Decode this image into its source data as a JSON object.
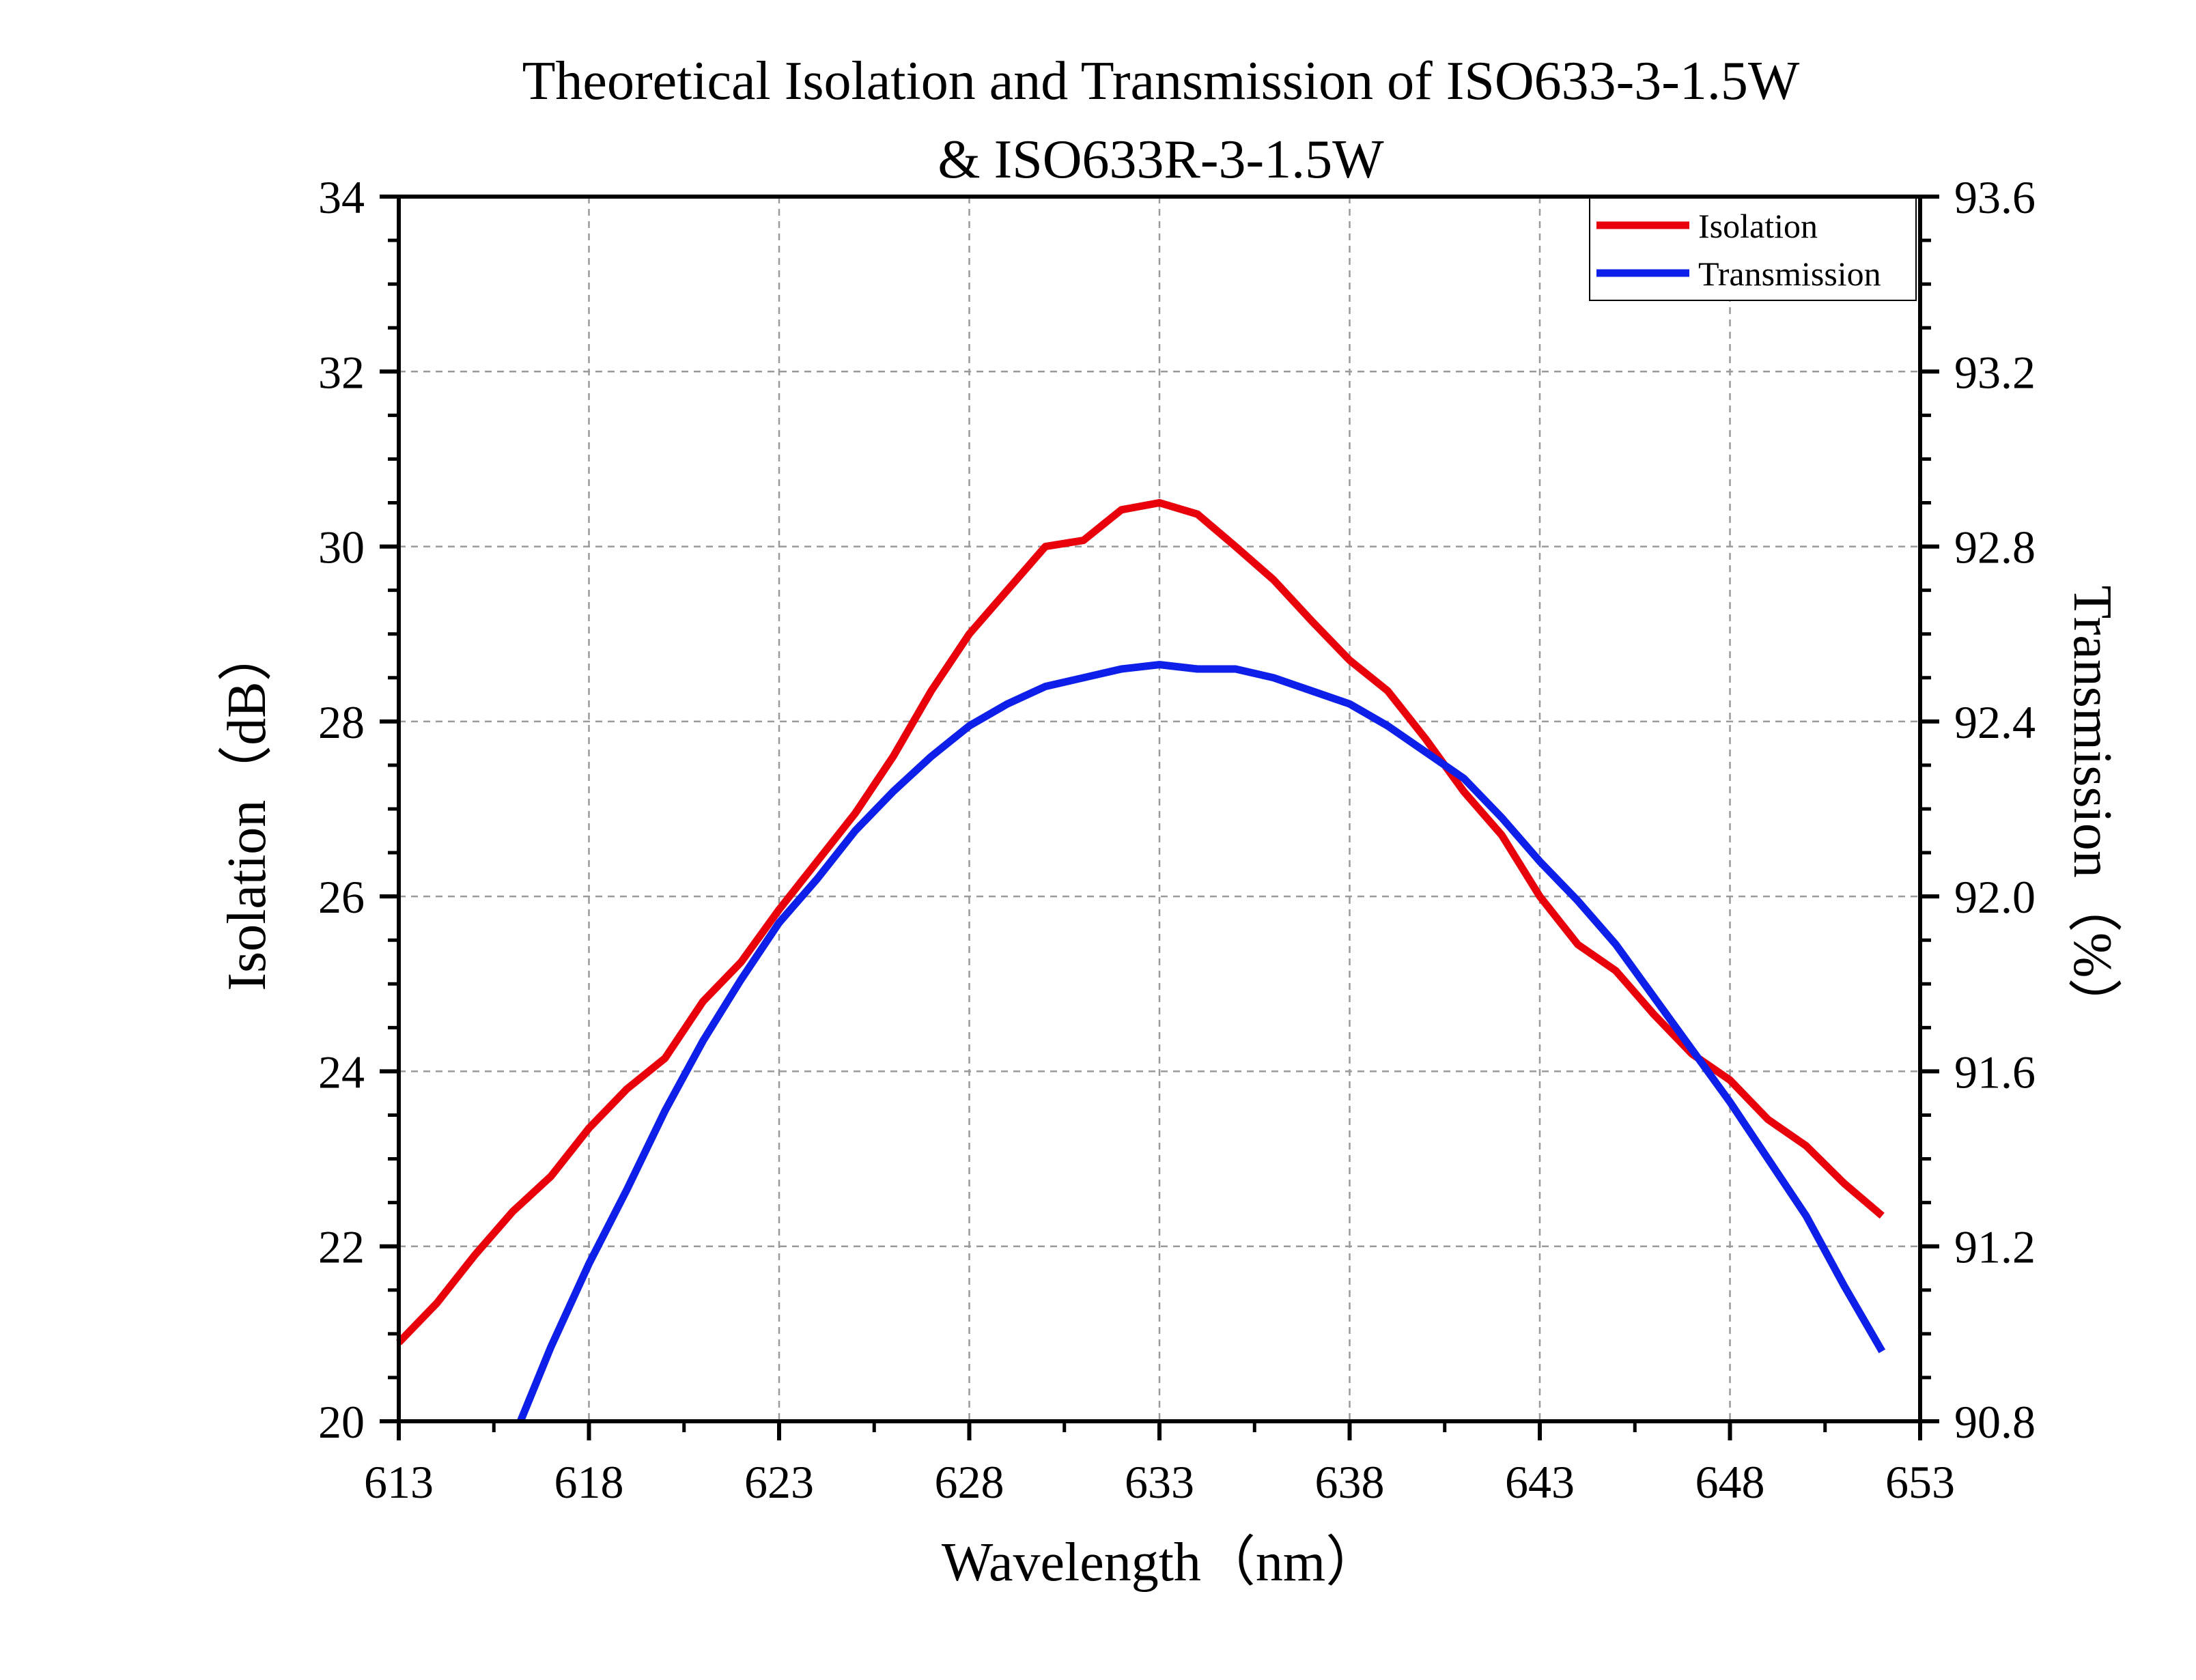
{
  "chart_data": {
    "type": "line",
    "title_line1": "Theoretical Isolation and Transmission of ISO633-3-1.5W",
    "title_line2": "& ISO633R-3-1.5W",
    "xlabel": "Wavelength（nm）",
    "ylabel_left": "Isolation（dB）",
    "ylabel_right": "Transmission（%）",
    "xlim": [
      613,
      653
    ],
    "ylim_left": [
      20,
      34
    ],
    "ylim_right": [
      90.8,
      93.6
    ],
    "x_ticks": [
      "613",
      "618",
      "623",
      "628",
      "633",
      "638",
      "643",
      "648",
      "653"
    ],
    "y_left_ticks": [
      "20",
      "22",
      "24",
      "26",
      "28",
      "30",
      "32",
      "34"
    ],
    "y_right_ticks": [
      "90.8",
      "91.2",
      "91.6",
      "92.0",
      "92.4",
      "92.8",
      "93.2",
      "93.6"
    ],
    "grid": true,
    "legend_position": "top-right",
    "series": [
      {
        "name": "Isolation",
        "axis": "left",
        "color": "#e8000b",
        "x": [
          613,
          614,
          615,
          616,
          617,
          618,
          619,
          620,
          621,
          622,
          623,
          624,
          625,
          626,
          627,
          628,
          629,
          630,
          631,
          632,
          633,
          634,
          635,
          636,
          637,
          638,
          639,
          640,
          641,
          642,
          643,
          644,
          645,
          646,
          647,
          648,
          649,
          650,
          651,
          652
        ],
        "values": [
          20.9,
          21.35,
          21.9,
          22.4,
          22.8,
          23.35,
          23.8,
          24.15,
          24.8,
          25.25,
          25.85,
          26.4,
          26.95,
          27.6,
          28.35,
          29.0,
          29.5,
          30.0,
          30.07,
          30.42,
          30.5,
          30.37,
          30.0,
          29.62,
          29.15,
          28.7,
          28.35,
          27.8,
          27.2,
          26.7,
          26.0,
          25.45,
          25.15,
          24.65,
          24.2,
          23.9,
          23.45,
          23.15,
          22.72,
          22.35
        ]
      },
      {
        "name": "Transmission",
        "axis": "right",
        "color": "#0d1fe8",
        "x": [
          616.2,
          617,
          618,
          619,
          620,
          621,
          622,
          623,
          624,
          625,
          626,
          627,
          628,
          629,
          630,
          631,
          632,
          633,
          634,
          635,
          636,
          637,
          638,
          639,
          640,
          641,
          642,
          643,
          644,
          645,
          646,
          647,
          648,
          649,
          650,
          651,
          652
        ],
        "values": [
          90.8,
          90.97,
          91.16,
          91.33,
          91.51,
          91.67,
          91.81,
          91.94,
          92.04,
          92.15,
          92.24,
          92.32,
          92.39,
          92.44,
          92.48,
          92.5,
          92.52,
          92.53,
          92.52,
          92.52,
          92.5,
          92.47,
          92.44,
          92.39,
          92.33,
          92.27,
          92.18,
          92.08,
          91.99,
          91.89,
          91.77,
          91.65,
          91.53,
          91.4,
          91.27,
          91.11,
          90.96
        ]
      }
    ]
  }
}
